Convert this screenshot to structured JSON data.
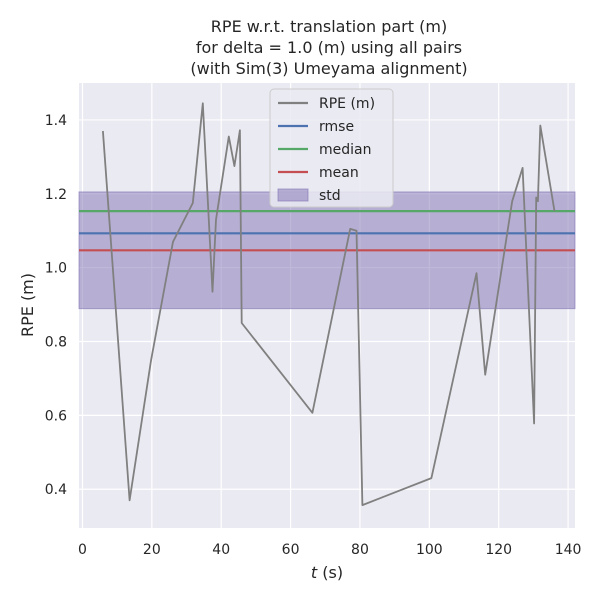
{
  "chart_data": {
    "type": "line",
    "title_lines": [
      "RPE w.r.t. translation part (m)",
      "for delta = 1.0 (m) using all pairs",
      "(with Sim(3) Umeyama alignment)"
    ],
    "xlabel_var": "t",
    "xlabel_unit": " (s)",
    "ylabel": "RPE (m)",
    "xlim": [
      -1,
      142
    ],
    "ylim": [
      0.295,
      1.5
    ],
    "x_ticks": [
      0,
      20,
      40,
      60,
      80,
      100,
      120,
      140
    ],
    "y_ticks": [
      0.4,
      0.6,
      0.8,
      1.0,
      1.2,
      1.4
    ],
    "grid": true,
    "legend_position": "top-center",
    "colors": {
      "background": "#eaeaf2",
      "grid": "#ffffff",
      "rpe": "#808080",
      "rmse": "#4c72b0",
      "median": "#55a868",
      "mean": "#c44e52",
      "std": "#8172b3"
    },
    "series": [
      {
        "name": "RPE (m)",
        "x": [
          5.9,
          13.6,
          19.8,
          26.1,
          31.8,
          34.7,
          37.5,
          38.5,
          42.2,
          43.8,
          45.4,
          45.9,
          66.3,
          77.2,
          79.0,
          80.7,
          100.6,
          113.6,
          116.1,
          123.9,
          126.9,
          130.2,
          130.8,
          131.3,
          132.0,
          136.1
        ],
        "y": [
          1.37,
          0.37,
          0.75,
          1.07,
          1.175,
          1.445,
          0.935,
          1.13,
          1.355,
          1.275,
          1.372,
          0.85,
          0.607,
          1.105,
          1.1,
          0.357,
          0.43,
          0.985,
          0.71,
          1.18,
          1.27,
          0.578,
          1.19,
          1.18,
          1.385,
          1.153
        ]
      }
    ],
    "stats": {
      "rmse": {
        "name": "rmse",
        "value": 1.093
      },
      "median": {
        "name": "median",
        "value": 1.153
      },
      "mean": {
        "name": "mean",
        "value": 1.047
      },
      "std": {
        "name": "std",
        "low": 0.889,
        "high": 1.205
      }
    }
  }
}
